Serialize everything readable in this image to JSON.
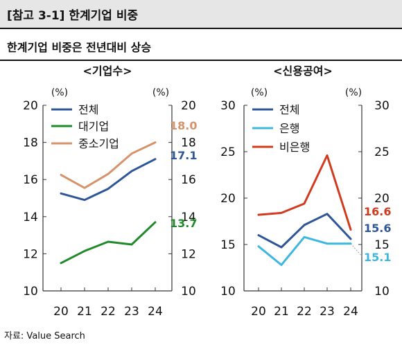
{
  "header": {
    "title": "[참고 3-1] 한계기업 비중"
  },
  "subtitle": "한계기업 비중은 전년대비 상승",
  "source": "자료: Value Search",
  "chart_data": [
    {
      "type": "line",
      "title": "<기업수>",
      "left_unit": "(%)",
      "right_unit": "(%)",
      "ylim": [
        10,
        20
      ],
      "yticks": [
        "10",
        "12",
        "14",
        "16",
        "18",
        "20"
      ],
      "categories": [
        "20",
        "21",
        "22",
        "23",
        "24"
      ],
      "series": [
        {
          "name": "전체",
          "color": "#2e5597",
          "values": [
            15.25,
            14.9,
            15.5,
            16.45,
            17.1
          ],
          "end_label": "17.1"
        },
        {
          "name": "대기업",
          "color": "#1f8a2a",
          "values": [
            11.5,
            12.15,
            12.65,
            12.5,
            13.7
          ],
          "end_label": "13.7"
        },
        {
          "name": "중소기업",
          "color": "#d6926a",
          "values": [
            16.25,
            15.55,
            16.3,
            17.4,
            18.0
          ],
          "end_label": "18.0"
        }
      ]
    },
    {
      "type": "line",
      "title": "<신용공여>",
      "left_unit": "(%)",
      "right_unit": "(%)",
      "ylim": [
        10,
        30
      ],
      "yticks": [
        "10",
        "15",
        "20",
        "25",
        "30"
      ],
      "categories": [
        "20",
        "21",
        "22",
        "23",
        "24"
      ],
      "series": [
        {
          "name": "전체",
          "color": "#2e5597",
          "values": [
            16.0,
            14.7,
            17.1,
            18.3,
            15.6
          ],
          "end_label": "15.6"
        },
        {
          "name": "은행",
          "color": "#3db6e0",
          "values": [
            14.8,
            12.8,
            15.8,
            15.1,
            15.1
          ],
          "end_label": "15.1"
        },
        {
          "name": "비은행",
          "color": "#d23a1e",
          "values": [
            18.2,
            18.4,
            19.4,
            24.6,
            16.6
          ],
          "end_label": "16.6"
        }
      ]
    }
  ]
}
